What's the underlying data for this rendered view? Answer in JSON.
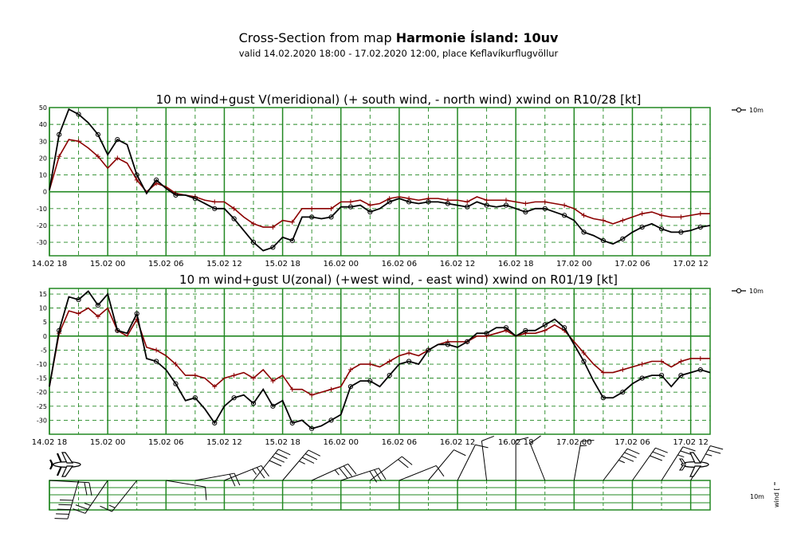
{
  "header": {
    "title_prefix": "Cross-Section from map ",
    "title_bold": "Harmonie Ísland: 10uv",
    "subtitle": "valid 14.02.2020 18:00 - 17.02.2020 12:00, place Keflavíkurflugvöllur"
  },
  "x_labels": [
    "14.02 18",
    "15.02 00",
    "15.02 06",
    "15.02 12",
    "15.02 18",
    "16.02 00",
    "16.02 06",
    "16.02 12",
    "16.02 18",
    "17.02 00",
    "17.02 06",
    "17.02 12"
  ],
  "colors": {
    "grid": "#228822",
    "wind": "#000000",
    "gust": "#8b0000"
  },
  "chart_data": [
    {
      "type": "line",
      "title": "10 m wind+gust V(meridional) (+ south wind, - north wind) xwind on R10/28 [kt]",
      "x_start": "14.02.2020 18:00",
      "x_step_hours": 1,
      "ylim": [
        -38,
        50
      ],
      "yticks": [
        50,
        40,
        30,
        20,
        10,
        0,
        -10,
        -20,
        -30
      ],
      "grid": true,
      "legend": {
        "position": "right",
        "entry": "10m"
      },
      "series": [
        {
          "name": "10m",
          "values": [
            1,
            34,
            49,
            46,
            41,
            34,
            22,
            31,
            28,
            10,
            -1,
            7,
            2,
            -2,
            -2,
            -4,
            -7,
            -10,
            -10,
            -16,
            -23,
            -30,
            -35,
            -33,
            -27,
            -29,
            -15,
            -15,
            -16,
            -15,
            -9,
            -9,
            -8,
            -12,
            -10,
            -6,
            -4,
            -6,
            -7,
            -6,
            -6,
            -7,
            -8,
            -9,
            -6,
            -8,
            -9,
            -8,
            -10,
            -12,
            -10,
            -10,
            -12,
            -14,
            -17,
            -24,
            -26,
            -29,
            -31,
            -28,
            -24,
            -21,
            -19,
            -22,
            -24,
            -24,
            -23,
            -21,
            -20
          ]
        },
        {
          "name": "",
          "values": [
            1,
            21,
            31,
            30,
            26,
            21,
            14,
            20,
            17,
            7,
            0,
            5,
            3,
            -1,
            -2,
            -3,
            -5,
            -6,
            -6,
            -10,
            -15,
            -19,
            -21,
            -21,
            -17,
            -18,
            -10,
            -10,
            -10,
            -10,
            -6,
            -6,
            -5,
            -8,
            -7,
            -4,
            -3,
            -4,
            -5,
            -4,
            -4,
            -5,
            -5,
            -6,
            -3,
            -5,
            -5,
            -5,
            -6,
            -7,
            -6,
            -6,
            -7,
            -8,
            -10,
            -14,
            -16,
            -17,
            -19,
            -17,
            -15,
            -13,
            -12,
            -14,
            -15,
            -15,
            -14,
            -13,
            -13
          ]
        }
      ]
    },
    {
      "type": "line",
      "title": "10 m wind+gust U(zonal) (+west wind, - east wind) xwind on R01/19 [kt]",
      "x_start": "14.02.2020 18:00",
      "x_step_hours": 1,
      "ylim": [
        -35,
        17
      ],
      "yticks": [
        15,
        10,
        5,
        0,
        -5,
        -10,
        -15,
        -20,
        -25,
        -30
      ],
      "grid": true,
      "legend": {
        "position": "right",
        "entry": "10m"
      },
      "series": [
        {
          "name": "10m",
          "values": [
            -18,
            2,
            14,
            13,
            16,
            11,
            15,
            2,
            1,
            8,
            -8,
            -9,
            -12,
            -17,
            -23,
            -22,
            -26,
            -31,
            -25,
            -22,
            -21,
            -24,
            -19,
            -25,
            -23,
            -31,
            -30,
            -33,
            -32,
            -30,
            -28,
            -18,
            -16,
            -16,
            -18,
            -14,
            -10,
            -9,
            -10,
            -5,
            -3,
            -3,
            -4,
            -2,
            1,
            1,
            3,
            3,
            0,
            2,
            2,
            4,
            6,
            3,
            -3,
            -9,
            -16,
            -22,
            -22,
            -20,
            -17,
            -15,
            -14,
            -14,
            -18,
            -14,
            -13,
            -12,
            -13
          ]
        },
        {
          "name": "",
          "values": [
            -18,
            1,
            9,
            8,
            10,
            7,
            10,
            2,
            0,
            6,
            -4,
            -5,
            -7,
            -10,
            -14,
            -14,
            -15,
            -18,
            -15,
            -14,
            -13,
            -15,
            -12,
            -16,
            -14,
            -19,
            -19,
            -21,
            -20,
            -19,
            -18,
            -12,
            -10,
            -10,
            -11,
            -9,
            -7,
            -6,
            -7,
            -5,
            -3,
            -2,
            -2,
            -2,
            0,
            0,
            1,
            2,
            0,
            1,
            1,
            2,
            4,
            2,
            -2,
            -6,
            -10,
            -13,
            -13,
            -12,
            -11,
            -10,
            -9,
            -9,
            -11,
            -9,
            -8,
            -8,
            -8
          ]
        }
      ]
    }
  ],
  "wind_panel": {
    "legend_level": "10m",
    "legend_label": "wind ["
  }
}
